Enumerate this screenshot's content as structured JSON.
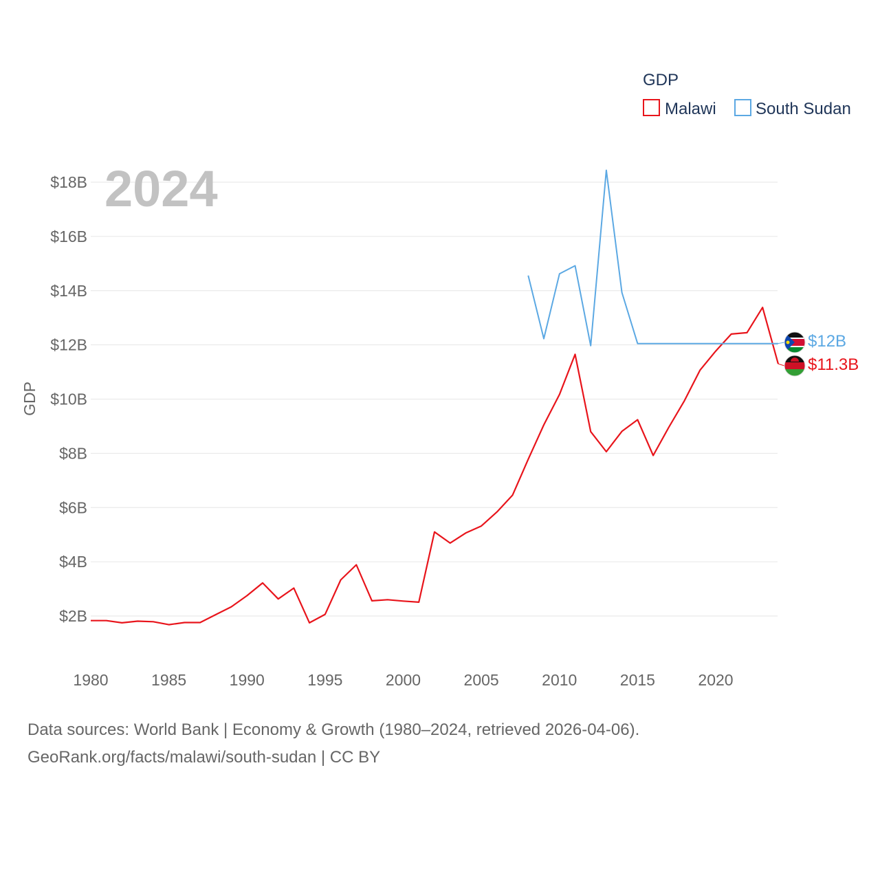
{
  "chart_data": {
    "type": "line",
    "title": "",
    "year_label": "2024",
    "ylabel": "GDP",
    "xlabel": "",
    "xlim": [
      1980,
      2024
    ],
    "ylim": [
      800000000,
      19400000000
    ],
    "x_ticks": [
      1980,
      1985,
      1990,
      1995,
      2000,
      2005,
      2010,
      2015,
      2020
    ],
    "y_ticks": [
      2000000000,
      4000000000,
      6000000000,
      8000000000,
      10000000000,
      12000000000,
      14000000000,
      16000000000,
      18000000000
    ],
    "y_tick_labels": [
      "$2B",
      "$4B",
      "$6B",
      "$8B",
      "$10B",
      "$12B",
      "$14B",
      "$16B",
      "$18B"
    ],
    "x_tick_labels": [
      "1980",
      "1985",
      "1990",
      "1995",
      "2000",
      "2005",
      "2010",
      "2015",
      "2020"
    ],
    "grid": true,
    "legend": {
      "title": "GDP",
      "position": "top-right",
      "entries": [
        "Malawi",
        "South Sudan"
      ]
    },
    "series": [
      {
        "name": "Malawi",
        "color": "#e8141b",
        "end_label": "$11.3B",
        "flag": "malawi-flag",
        "x": [
          1980,
          1981,
          1982,
          1983,
          1984,
          1985,
          1986,
          1987,
          1988,
          1989,
          1990,
          1991,
          1992,
          1993,
          1994,
          1995,
          1996,
          1997,
          1998,
          1999,
          2000,
          2001,
          2002,
          2003,
          2004,
          2005,
          2006,
          2007,
          2008,
          2009,
          2010,
          2011,
          2012,
          2013,
          2014,
          2015,
          2016,
          2017,
          2018,
          2019,
          2020,
          2021,
          2022,
          2023,
          2024
        ],
        "values": [
          1830000000,
          1830000000,
          1750000000,
          1810000000,
          1790000000,
          1680000000,
          1760000000,
          1760000000,
          2050000000,
          2340000000,
          2750000000,
          3220000000,
          2630000000,
          3030000000,
          1750000000,
          2060000000,
          3330000000,
          3890000000,
          2560000000,
          2600000000,
          2550000000,
          2510000000,
          5100000000,
          4690000000,
          5060000000,
          5320000000,
          5840000000,
          6460000000,
          7780000000,
          9050000000,
          10170000000,
          11650000000,
          8800000000,
          8060000000,
          8810000000,
          9240000000,
          7920000000,
          8960000000,
          9940000000,
          11070000000,
          11770000000,
          12400000000,
          12450000000,
          13380000000,
          11300000000
        ]
      },
      {
        "name": "South Sudan",
        "color": "#5ba8e3",
        "end_label": "$12B",
        "flag": "south-sudan-flag",
        "x": [
          2008,
          2009,
          2010,
          2011,
          2012,
          2013,
          2014,
          2015,
          2016,
          2017,
          2018,
          2019,
          2020,
          2021,
          2022,
          2023,
          2024
        ],
        "values": [
          14560000000,
          12230000000,
          14620000000,
          14920000000,
          11970000000,
          18440000000,
          13930000000,
          12050000000,
          12050000000,
          12050000000,
          12050000000,
          12050000000,
          12050000000,
          12050000000,
          12050000000,
          12050000000,
          12050000000
        ]
      }
    ]
  },
  "footer": {
    "line1": "Data sources: World Bank | Economy & Growth (1980–2024, retrieved 2026-04-06).",
    "line2": "GeoRank.org/facts/malawi/south-sudan | CC BY"
  }
}
